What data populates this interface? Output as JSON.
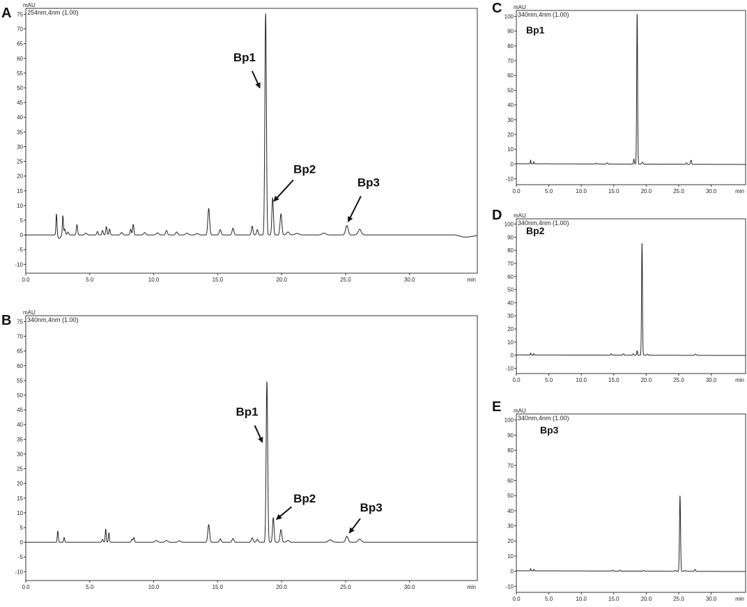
{
  "chart_data": [
    {
      "id": "A",
      "type": "line",
      "panel_label": "A",
      "detector": "254nm,4nm (1.00)",
      "y_unit": "mAU",
      "x_unit": "min",
      "xlim": [
        0,
        35.3
      ],
      "ylim": [
        -13,
        77
      ],
      "yticks": [
        -10,
        -5,
        0,
        5,
        10,
        15,
        20,
        25,
        30,
        35,
        40,
        45,
        50,
        55,
        60,
        65,
        70,
        75
      ],
      "xticks": [
        0,
        5,
        10,
        15,
        20,
        25,
        30
      ],
      "xtick_labels": [
        "0.0",
        "5.0",
        "10.0",
        "15.0",
        "20.0",
        "25.0",
        "30.0"
      ],
      "baseline": [
        [
          0,
          0
        ],
        [
          33.6,
          0
        ],
        [
          34.2,
          -0.7
        ],
        [
          34.6,
          -0.7
        ],
        [
          35.3,
          -0.2
        ]
      ],
      "peaks": [
        {
          "rt": 2.4,
          "height": 7.2,
          "width": 0.04
        },
        {
          "rt": 2.62,
          "height": -1.2,
          "width": 0.1
        },
        {
          "rt": 2.9,
          "height": 6.5,
          "width": 0.04
        },
        {
          "rt": 3.05,
          "height": 2.0,
          "width": 0.05
        },
        {
          "rt": 3.3,
          "height": 1.0,
          "width": 0.06
        },
        {
          "rt": 4.0,
          "height": 3.5,
          "width": 0.05
        },
        {
          "rt": 4.7,
          "height": 0.6,
          "width": 0.08
        },
        {
          "rt": 5.6,
          "height": 1.2,
          "width": 0.05
        },
        {
          "rt": 6.0,
          "height": 1.5,
          "width": 0.05
        },
        {
          "rt": 6.3,
          "height": 2.8,
          "width": 0.05
        },
        {
          "rt": 6.55,
          "height": 2.0,
          "width": 0.05
        },
        {
          "rt": 7.5,
          "height": 0.8,
          "width": 0.08
        },
        {
          "rt": 8.2,
          "height": 2.0,
          "width": 0.05
        },
        {
          "rt": 8.4,
          "height": 3.6,
          "width": 0.05
        },
        {
          "rt": 9.3,
          "height": 0.8,
          "width": 0.08
        },
        {
          "rt": 10.3,
          "height": 0.7,
          "width": 0.1
        },
        {
          "rt": 11.0,
          "height": 1.5,
          "width": 0.07
        },
        {
          "rt": 11.8,
          "height": 1.0,
          "width": 0.08
        },
        {
          "rt": 12.6,
          "height": 0.6,
          "width": 0.1
        },
        {
          "rt": 13.4,
          "height": 0.5,
          "width": 0.1
        },
        {
          "rt": 14.3,
          "height": 9.0,
          "width": 0.07
        },
        {
          "rt": 15.2,
          "height": 1.8,
          "width": 0.07
        },
        {
          "rt": 16.2,
          "height": 2.3,
          "width": 0.07
        },
        {
          "rt": 17.7,
          "height": 3.0,
          "width": 0.06
        },
        {
          "rt": 18.1,
          "height": 1.8,
          "width": 0.06
        },
        {
          "rt": 18.75,
          "height": 75.2,
          "width": 0.06
        },
        {
          "rt": 19.3,
          "height": 12.6,
          "width": 0.06
        },
        {
          "rt": 19.95,
          "height": 7.2,
          "width": 0.07
        },
        {
          "rt": 20.5,
          "height": 1.0,
          "width": 0.1
        },
        {
          "rt": 21.2,
          "height": 0.5,
          "width": 0.15
        },
        {
          "rt": 23.3,
          "height": 0.6,
          "width": 0.15
        },
        {
          "rt": 25.1,
          "height": 3.2,
          "width": 0.1
        },
        {
          "rt": 26.1,
          "height": 1.9,
          "width": 0.12
        }
      ],
      "annotations": [
        {
          "text": "Bp1",
          "tx": 17.1,
          "ty": 59,
          "ax": 18.3,
          "ay": 50
        },
        {
          "text": "Bp2",
          "tx": 21.8,
          "ty": 21,
          "ax": 19.4,
          "ay": 11.5
        },
        {
          "text": "Bp3",
          "tx": 26.8,
          "ty": 16.5,
          "ax": 25.2,
          "ay": 4.5
        }
      ]
    },
    {
      "id": "B",
      "type": "line",
      "panel_label": "B",
      "detector": "340nm,4nm (1.00)",
      "y_unit": "mAU",
      "x_unit": "min",
      "xlim": [
        0,
        35.3
      ],
      "ylim": [
        -13,
        77
      ],
      "yticks": [
        -10,
        -5,
        0,
        5,
        10,
        15,
        20,
        25,
        30,
        35,
        40,
        45,
        50,
        55,
        60,
        65,
        70,
        75
      ],
      "xticks": [
        0,
        5,
        10,
        15,
        20,
        25,
        30
      ],
      "xtick_labels": [
        "0.0",
        "5.0",
        "10.0",
        "15.0",
        "20.0",
        "25.0",
        "30.0"
      ],
      "baseline": [
        [
          0,
          0
        ],
        [
          35.3,
          0
        ]
      ],
      "peaks": [
        {
          "rt": 2.5,
          "height": 3.8,
          "width": 0.04
        },
        {
          "rt": 3.0,
          "height": 1.6,
          "width": 0.04
        },
        {
          "rt": 6.0,
          "height": 1.0,
          "width": 0.05
        },
        {
          "rt": 6.25,
          "height": 4.5,
          "width": 0.04
        },
        {
          "rt": 6.5,
          "height": 3.2,
          "width": 0.04
        },
        {
          "rt": 8.3,
          "height": 1.0,
          "width": 0.05
        },
        {
          "rt": 8.45,
          "height": 1.6,
          "width": 0.05
        },
        {
          "rt": 10.2,
          "height": 0.6,
          "width": 0.1
        },
        {
          "rt": 11.0,
          "height": 0.6,
          "width": 0.1
        },
        {
          "rt": 12.0,
          "height": 0.5,
          "width": 0.1
        },
        {
          "rt": 14.3,
          "height": 6.0,
          "width": 0.07
        },
        {
          "rt": 15.2,
          "height": 1.2,
          "width": 0.07
        },
        {
          "rt": 16.2,
          "height": 1.3,
          "width": 0.07
        },
        {
          "rt": 17.7,
          "height": 1.5,
          "width": 0.07
        },
        {
          "rt": 18.1,
          "height": 1.0,
          "width": 0.07
        },
        {
          "rt": 18.85,
          "height": 54.6,
          "width": 0.06
        },
        {
          "rt": 19.35,
          "height": 8.4,
          "width": 0.06
        },
        {
          "rt": 19.95,
          "height": 4.3,
          "width": 0.07
        },
        {
          "rt": 20.5,
          "height": 0.6,
          "width": 0.1
        },
        {
          "rt": 23.8,
          "height": 0.8,
          "width": 0.15
        },
        {
          "rt": 25.1,
          "height": 2.0,
          "width": 0.1
        },
        {
          "rt": 26.1,
          "height": 1.1,
          "width": 0.12
        }
      ],
      "annotations": [
        {
          "text": "Bp1",
          "tx": 17.3,
          "ty": 43,
          "ax": 18.5,
          "ay": 34
        },
        {
          "text": "Bp2",
          "tx": 21.8,
          "ty": 13.5,
          "ax": 19.6,
          "ay": 7.8
        },
        {
          "text": "Bp3",
          "tx": 27.0,
          "ty": 10.5,
          "ax": 25.3,
          "ay": 3.2
        }
      ]
    },
    {
      "id": "C",
      "type": "line",
      "panel_label": "C",
      "detector": "340nm,4nm (1.00)",
      "y_unit": "mAU",
      "x_unit": "min",
      "xlim": [
        0,
        35.3
      ],
      "ylim": [
        -14,
        104
      ],
      "yticks": [
        -10,
        0,
        10,
        20,
        30,
        40,
        50,
        60,
        70,
        80,
        90,
        100
      ],
      "xticks": [
        0,
        5,
        10,
        15,
        20,
        25,
        30
      ],
      "xtick_labels": [
        "0.0",
        "5.0",
        "10.0",
        "15.0",
        "20.0",
        "25.0",
        "30.0"
      ],
      "baseline": [
        [
          0,
          0.2
        ],
        [
          35.3,
          -0.3
        ]
      ],
      "peaks": [
        {
          "rt": 2.2,
          "height": 2.5,
          "width": 0.04
        },
        {
          "rt": 2.7,
          "height": 1.5,
          "width": 0.04
        },
        {
          "rt": 12.3,
          "height": 0.6,
          "width": 0.08
        },
        {
          "rt": 14.0,
          "height": 0.8,
          "width": 0.08
        },
        {
          "rt": 18.1,
          "height": 3.5,
          "width": 0.06
        },
        {
          "rt": 18.6,
          "height": 101.5,
          "width": 0.07
        },
        {
          "rt": 19.4,
          "height": 1.3,
          "width": 0.1
        },
        {
          "rt": 26.2,
          "height": 1.0,
          "width": 0.08
        },
        {
          "rt": 26.9,
          "height": 2.7,
          "width": 0.08
        }
      ],
      "peak_label": "Bp1"
    },
    {
      "id": "D",
      "type": "line",
      "panel_label": "D",
      "detector": "340nm,4nm (1.00)",
      "y_unit": "mAU",
      "x_unit": "min",
      "xlim": [
        0,
        35.3
      ],
      "ylim": [
        -14,
        104
      ],
      "yticks": [
        -10,
        0,
        10,
        20,
        30,
        40,
        50,
        60,
        70,
        80,
        90,
        100
      ],
      "xticks": [
        0,
        5,
        10,
        15,
        20,
        25,
        30
      ],
      "xtick_labels": [
        "0.0",
        "5.0",
        "10.0",
        "15.0",
        "20.0",
        "25.0",
        "30.0"
      ],
      "baseline": [
        [
          0,
          0.2
        ],
        [
          35.3,
          -0.2
        ]
      ],
      "peaks": [
        {
          "rt": 2.2,
          "height": 1.5,
          "width": 0.04
        },
        {
          "rt": 2.7,
          "height": 1.0,
          "width": 0.04
        },
        {
          "rt": 14.6,
          "height": 1.0,
          "width": 0.08
        },
        {
          "rt": 16.5,
          "height": 1.0,
          "width": 0.08
        },
        {
          "rt": 18.0,
          "height": 1.0,
          "width": 0.08
        },
        {
          "rt": 18.6,
          "height": 3.5,
          "width": 0.06
        },
        {
          "rt": 19.35,
          "height": 85.2,
          "width": 0.07
        },
        {
          "rt": 20.2,
          "height": 0.8,
          "width": 0.1
        },
        {
          "rt": 27.6,
          "height": 1.0,
          "width": 0.1
        }
      ],
      "peak_label": "Bp2"
    },
    {
      "id": "E",
      "type": "line",
      "panel_label": "E",
      "detector": "340nm,4nm (1.00)",
      "y_unit": "mAU",
      "x_unit": "min",
      "xlim": [
        0,
        35.3
      ],
      "ylim": [
        -14,
        104
      ],
      "yticks": [
        -10,
        0,
        10,
        20,
        30,
        40,
        50,
        60,
        70,
        80,
        90,
        100
      ],
      "xticks": [
        0,
        5,
        10,
        15,
        20,
        25,
        30
      ],
      "xtick_labels": [
        "0.0",
        "5.0",
        "10.0",
        "15.0",
        "20.0",
        "25.0",
        "30.0"
      ],
      "baseline": [
        [
          0,
          0.3
        ],
        [
          35.3,
          -0.2
        ]
      ],
      "peaks": [
        {
          "rt": 2.2,
          "height": 1.5,
          "width": 0.04
        },
        {
          "rt": 2.7,
          "height": 1.0,
          "width": 0.04
        },
        {
          "rt": 14.8,
          "height": 0.6,
          "width": 0.08
        },
        {
          "rt": 16.0,
          "height": 0.6,
          "width": 0.08
        },
        {
          "rt": 19.6,
          "height": 0.5,
          "width": 0.1
        },
        {
          "rt": 24.5,
          "height": 0.6,
          "width": 0.1
        },
        {
          "rt": 25.2,
          "height": 49.8,
          "width": 0.08
        },
        {
          "rt": 26.0,
          "height": 0.6,
          "width": 0.1
        },
        {
          "rt": 27.5,
          "height": 1.3,
          "width": 0.08
        }
      ],
      "peak_label": "Bp3"
    }
  ]
}
